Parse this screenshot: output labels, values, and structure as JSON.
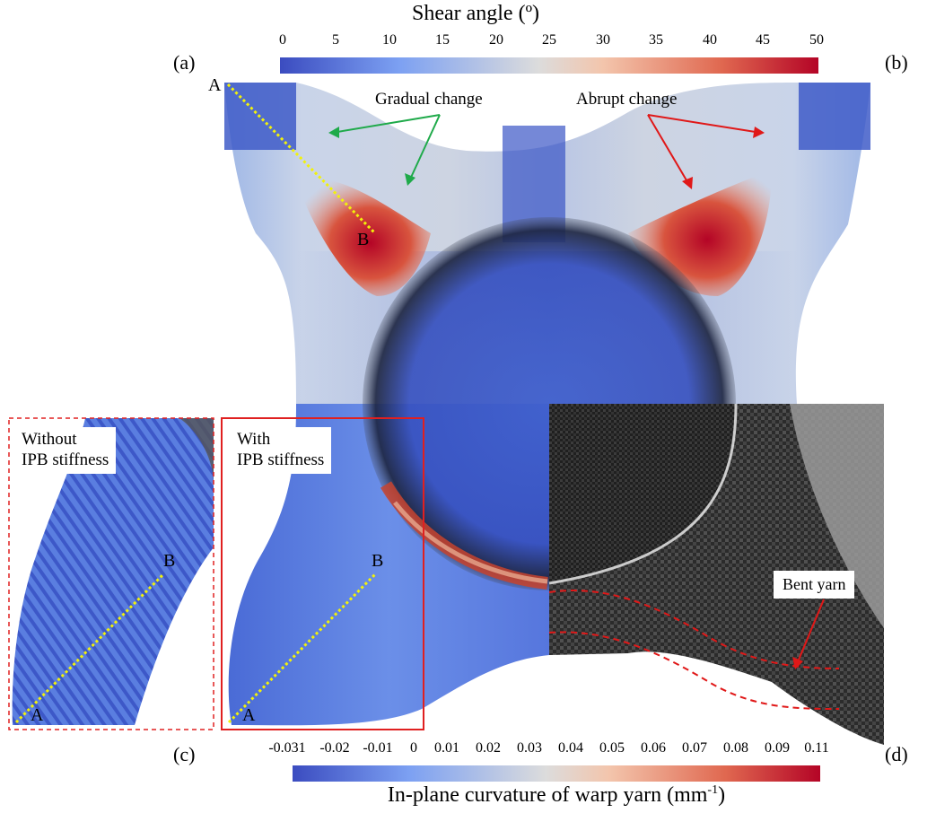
{
  "top_colorbar": {
    "title": "Shear angle (º)",
    "ticks": [
      "0",
      "5",
      "10",
      "15",
      "20",
      "25",
      "30",
      "35",
      "40",
      "45",
      "50"
    ],
    "colors": [
      "#3b4cc0",
      "#7ca0f2",
      "#c8d7ef",
      "#f3c5ac",
      "#e06850",
      "#b40426"
    ]
  },
  "bottom_colorbar": {
    "title_main": "In-plane curvature of warp yarn (mm",
    "title_sup": "-1",
    "title_end": ")",
    "ticks": [
      "-0.031",
      "-0.02",
      "-0.01",
      "0",
      "0.01",
      "0.02",
      "0.03",
      "0.04",
      "0.05",
      "0.06",
      "0.07",
      "0.08",
      "0.09",
      "0.11"
    ]
  },
  "panels": {
    "a": "(a)",
    "b": "(b)",
    "c": "(c)",
    "d": "(d)"
  },
  "annotations": {
    "gradual": "Gradual change",
    "abrupt": "Abrupt change",
    "bent_yarn": "Bent yarn",
    "without_line1": "Without",
    "without_line2": "IPB stiffness",
    "with_line1": "With",
    "with_line2": "IPB stiffness"
  },
  "points": {
    "A": "A",
    "B": "B"
  },
  "colors": {
    "arrow_green": "#1faa4a",
    "arrow_red": "#e01818",
    "path_yellow": "#f2f20a",
    "frame_red": "#e02020"
  }
}
